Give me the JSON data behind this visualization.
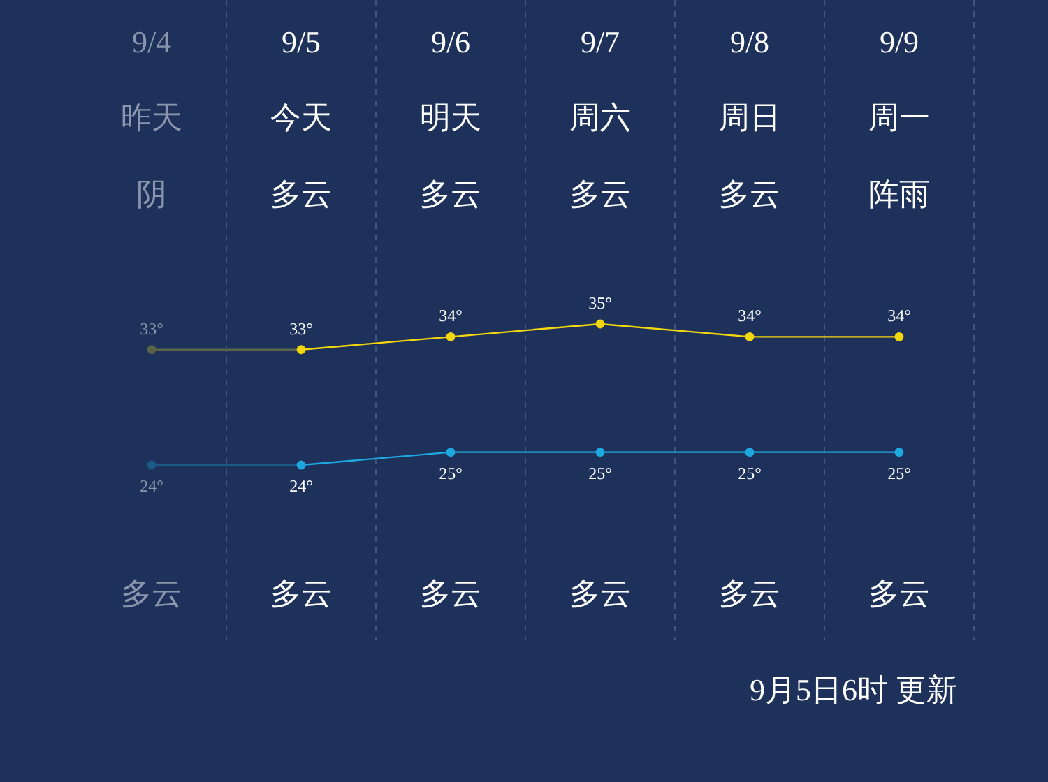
{
  "chart_data": {
    "type": "line",
    "categories": [
      "9/4",
      "9/5",
      "9/6",
      "9/7",
      "9/8",
      "9/9"
    ],
    "annotations": [
      "昨天",
      "今天",
      "明天",
      "周六",
      "周日",
      "周一",
      "阴",
      "多云",
      "多云",
      "多云",
      "多云",
      "阵雨",
      "多云",
      "多云",
      "多云",
      "多云",
      "多云",
      "多云",
      "9月5日6时 更新"
    ],
    "series": [
      {
        "color": "#f2d70c",
        "colors": [
          "#5a6248",
          "#f2d70c",
          "#f2d70c",
          "#f2d70c",
          "#f2d70c",
          "#f2d70c"
        ],
        "values": [
          33,
          33,
          34,
          35,
          34,
          34
        ],
        "value_labels": [
          "33°",
          "33°",
          "34°",
          "35°",
          "34°",
          "34°"
        ]
      },
      {
        "color": "#1ea8e0",
        "colors": [
          "#1b5a84",
          "#1ea8e0",
          "#1ea8e0",
          "#1ea8e0",
          "#1ea8e0",
          "#1ea8e0"
        ],
        "values": [
          24,
          24,
          25,
          25,
          25,
          25
        ],
        "value_labels": [
          "24°",
          "24°",
          "25°",
          "25°",
          "25°",
          "25°"
        ]
      }
    ],
    "marker": "circle",
    "grid": "x"
  }
}
